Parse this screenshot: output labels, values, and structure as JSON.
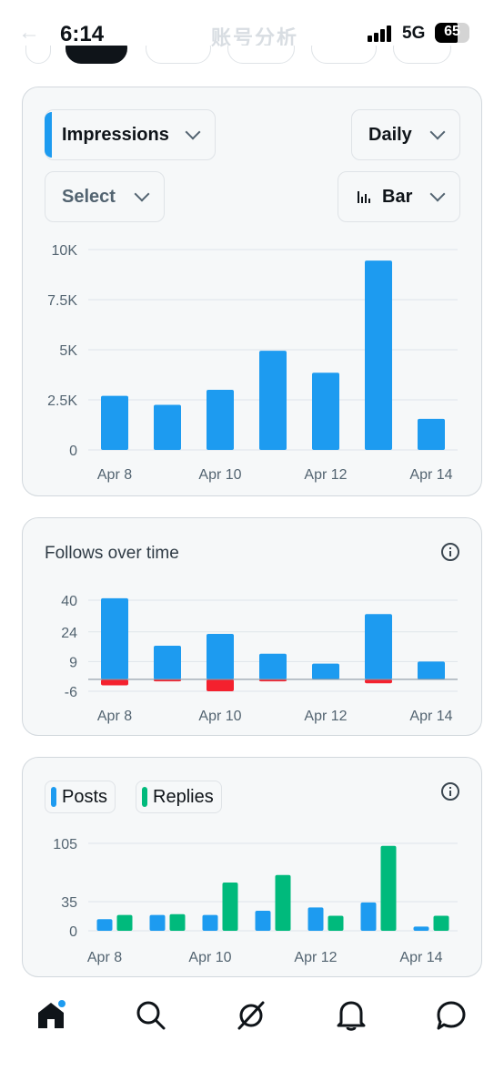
{
  "status_bar": {
    "time": "6:14",
    "network": "5G",
    "battery": "65",
    "battery_level": 0.65,
    "faded_title": "账号分析"
  },
  "controls": {
    "metric": "Impressions",
    "period": "Daily",
    "compare": "Select",
    "chart_type": "Bar"
  },
  "follows_card": {
    "title": "Follows over time"
  },
  "posts_card": {
    "legend": [
      "Posts",
      "Replies"
    ]
  },
  "colors": {
    "blue": "#1d9bf0",
    "green": "#00ba7c",
    "red": "#f4212e"
  },
  "nav": [
    "home-icon",
    "search-icon",
    "grok-icon",
    "notifications-icon",
    "messages-icon"
  ],
  "chart_data": [
    {
      "type": "bar",
      "categories": [
        "Apr 8",
        "Apr 9",
        "Apr 10",
        "Apr 11",
        "Apr 12",
        "Apr 13",
        "Apr 14"
      ],
      "x_tick_labels": [
        "Apr 8",
        "Apr 10",
        "Apr 12",
        "Apr 14"
      ],
      "y_tick_labels": [
        "10K",
        "7.5K",
        "5K",
        "2.5K",
        "0"
      ],
      "y_ticks": [
        10000,
        7500,
        5000,
        2500,
        0
      ],
      "ylim": [
        0,
        10000
      ],
      "series": [
        {
          "name": "Impressions",
          "values": [
            2700,
            2250,
            3000,
            4950,
            3850,
            9450,
            1550
          ]
        }
      ],
      "grid": true
    },
    {
      "type": "bar",
      "title": "Follows over time",
      "categories": [
        "Apr 8",
        "Apr 9",
        "Apr 10",
        "Apr 11",
        "Apr 12",
        "Apr 13",
        "Apr 14"
      ],
      "x_tick_labels": [
        "Apr 8",
        "Apr 10",
        "Apr 12",
        "Apr 14"
      ],
      "y_tick_labels": [
        "40",
        "24",
        "9",
        "-6"
      ],
      "y_ticks": [
        40,
        24,
        9,
        -6
      ],
      "ylim": [
        -6,
        40
      ],
      "series": [
        {
          "values": [
            41,
            17,
            23,
            13,
            8,
            33,
            9
          ]
        },
        {
          "values": [
            -3,
            -1,
            -6,
            -1,
            0,
            -2,
            0
          ]
        }
      ],
      "grid": true
    },
    {
      "type": "bar",
      "categories": [
        "Apr 8",
        "Apr 9",
        "Apr 10",
        "Apr 11",
        "Apr 12",
        "Apr 13",
        "Apr 14"
      ],
      "x_tick_labels": [
        "Apr 8",
        "Apr 10",
        "Apr 12",
        "Apr 14"
      ],
      "y_tick_labels": [
        "105",
        "35",
        "0"
      ],
      "y_ticks": [
        105,
        35,
        0
      ],
      "ylim": [
        0,
        105
      ],
      "series": [
        {
          "name": "Posts",
          "values": [
            14,
            19,
            19,
            24,
            28,
            34,
            5
          ]
        },
        {
          "name": "Replies",
          "values": [
            19,
            20,
            58,
            67,
            18,
            102,
            18
          ]
        }
      ],
      "grid": true
    }
  ]
}
